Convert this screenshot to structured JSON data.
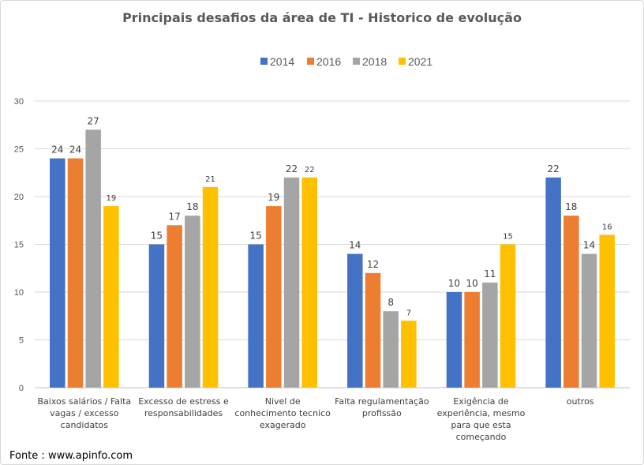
{
  "chart_data": {
    "type": "bar",
    "title": "Principais desafios da área de TI - Historico de evolução",
    "categories": [
      [
        "Baixos salários / Falta",
        "vagas / excesso",
        "candidatos"
      ],
      [
        "Excesso de estress e",
        "responsabilidades"
      ],
      [
        "Nivel de",
        "conhecimento tecnico",
        "exagerado"
      ],
      [
        "Falta regulamentação",
        "profissão"
      ],
      [
        "Exigência de",
        "experiência, mesmo",
        "para que esta",
        "começando"
      ],
      [
        "outros"
      ]
    ],
    "series": [
      {
        "name": "2014",
        "color": "#4472c4",
        "values": [
          24,
          15,
          15,
          14,
          10,
          22
        ]
      },
      {
        "name": "2016",
        "color": "#ed7d31",
        "values": [
          24,
          17,
          19,
          12,
          10,
          18
        ]
      },
      {
        "name": "2018",
        "color": "#a5a5a5",
        "values": [
          27,
          18,
          22,
          8,
          11,
          14
        ]
      },
      {
        "name": "2021",
        "color": "#ffc000",
        "values": [
          19,
          21,
          22,
          7,
          15,
          16
        ]
      }
    ],
    "yticks": [
      "0",
      "5",
      "10",
      "15",
      "20",
      "25",
      "30"
    ],
    "ylim": [
      0,
      30
    ],
    "grid": true,
    "legend": "top-center"
  },
  "source": "Fonte : www.apinfo.com"
}
